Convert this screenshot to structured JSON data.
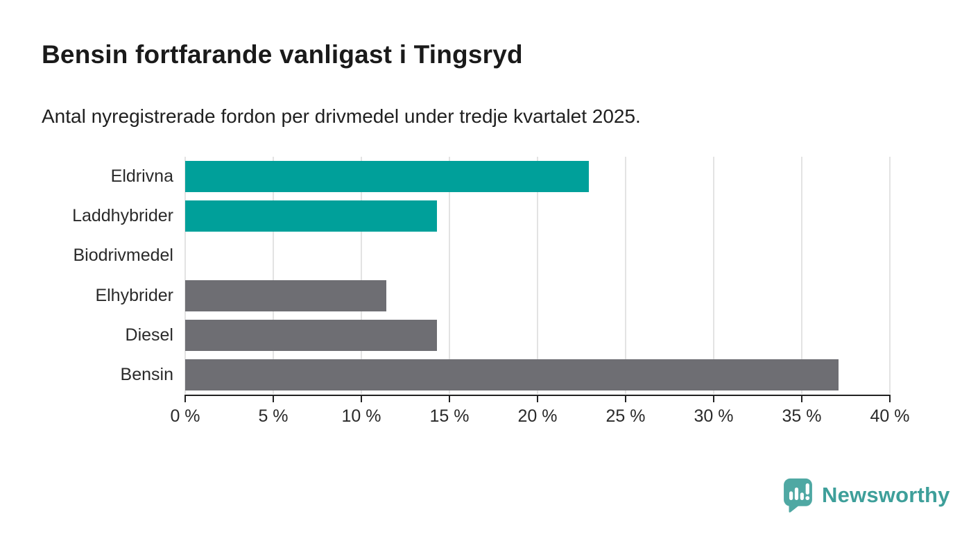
{
  "header": {
    "title": "Bensin fortfarande vanligast i Tingsryd",
    "subtitle": "Antal nyregistrerade fordon per drivmedel under tredje kvartalet 2025."
  },
  "chart_data": {
    "type": "bar",
    "orientation": "horizontal",
    "categories": [
      "Eldrivna",
      "Laddhybrider",
      "Biodrivmedel",
      "Elhybrider",
      "Diesel",
      "Bensin"
    ],
    "values": [
      22.9,
      14.3,
      0,
      11.4,
      14.3,
      37.1
    ],
    "bar_colors": [
      "#00A09A",
      "#00A09A",
      "#6E6E73",
      "#6E6E73",
      "#6E6E73",
      "#6E6E73"
    ],
    "accent_color": "#00A09A",
    "neutral_color": "#6E6E73",
    "xlim": [
      0,
      40
    ],
    "x_ticks": [
      0,
      5,
      10,
      15,
      20,
      25,
      30,
      35,
      40
    ],
    "x_tick_suffix": " %",
    "grid": true,
    "legend": "none",
    "title": "Bensin fortfarande vanligast i Tingsryd",
    "xlabel": "",
    "ylabel": ""
  },
  "branding": {
    "logo_text": "Newsworthy",
    "logo_icon": "newsworthy-chart-bubble-icon",
    "icon_color": "#4FA8A3",
    "text_color": "#3E9F9A"
  }
}
